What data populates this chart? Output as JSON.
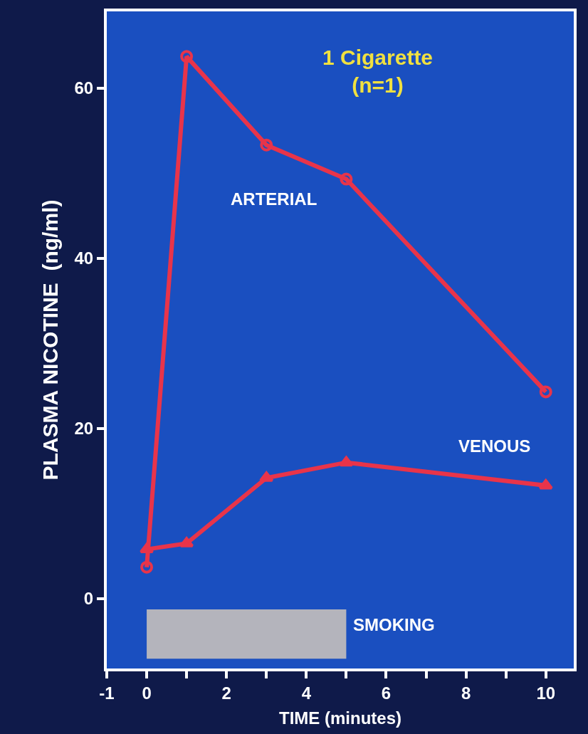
{
  "chart_data": {
    "type": "line",
    "title": "1 Cigarette\n(n=1)",
    "xlabel": "TIME (minutes)",
    "ylabel": "PLASMA NICOTINE  (ng/ml)",
    "series": [
      {
        "name": "ARTERIAL",
        "color": "#e8344a",
        "marker": "circle-open",
        "x": [
          0,
          1,
          3,
          5,
          10
        ],
        "values": [
          3.7,
          63.7,
          53.3,
          49.3,
          24.3
        ]
      },
      {
        "name": "VENOUS",
        "color": "#e8344a",
        "marker": "triangle",
        "x": [
          0,
          1,
          3,
          5,
          10
        ],
        "values": [
          5.8,
          6.5,
          14.2,
          16,
          13.3
        ]
      }
    ],
    "xlim": [
      -1,
      10.7
    ],
    "ylim": [
      -8.2,
      69
    ],
    "xticks": [
      -1,
      0,
      {
        "value": 1,
        "label": null
      },
      2,
      {
        "value": 3,
        "label": null
      },
      4,
      {
        "value": 5,
        "label": null
      },
      6,
      {
        "value": 7,
        "label": null
      },
      8,
      {
        "value": 9,
        "label": null
      },
      10
    ],
    "yticks": [
      0,
      20,
      40,
      60
    ],
    "bands": [
      {
        "axis": "x",
        "from": 0,
        "to": 5,
        "label": "SMOKING",
        "color": "#b4b4bc"
      }
    ],
    "grid": false,
    "legend": false
  }
}
